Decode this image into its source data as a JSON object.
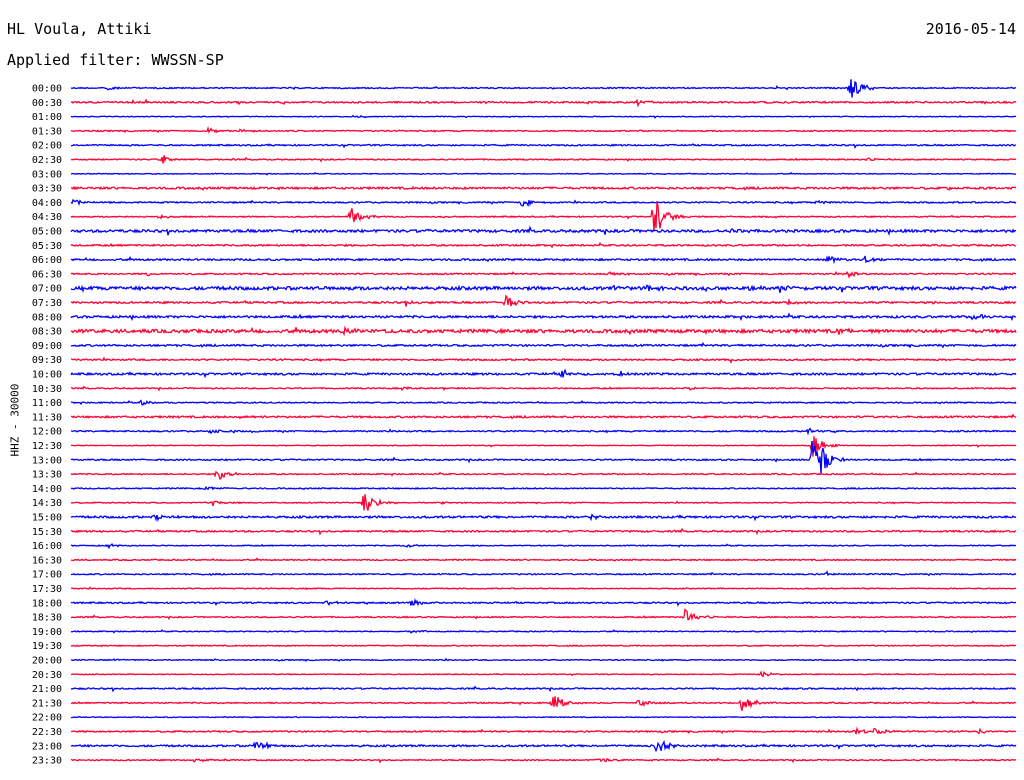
{
  "header": {
    "station": "HL Voula, Attiki",
    "date": "2016-05-14",
    "filter": "Applied filter: WWSSN-SP"
  },
  "chart_data": {
    "type": "line",
    "title": "HL Voula, Attiki",
    "ylabel": "HHZ - 30000",
    "colors": {
      "even": "#0000ff",
      "odd": "#ff0033"
    },
    "rows": [
      {
        "label": "00:00",
        "noise": 0.6,
        "events": [
          {
            "pos": 0.038,
            "amp": 2.5
          },
          {
            "pos": 0.825,
            "amp": 13
          }
        ]
      },
      {
        "label": "00:30",
        "noise": 0.8,
        "events": [
          {
            "pos": 0.6,
            "amp": 3
          }
        ]
      },
      {
        "label": "01:00",
        "noise": 0.4,
        "events": [
          {
            "pos": 0.3,
            "amp": 1.5
          }
        ]
      },
      {
        "label": "01:30",
        "noise": 0.6,
        "events": [
          {
            "pos": 0.145,
            "amp": 3
          },
          {
            "pos": 0.18,
            "amp": 2
          }
        ]
      },
      {
        "label": "02:00",
        "noise": 0.7,
        "events": []
      },
      {
        "label": "02:30",
        "noise": 0.6,
        "events": [
          {
            "pos": 0.097,
            "amp": 5
          },
          {
            "pos": 0.84,
            "amp": 1.5
          }
        ]
      },
      {
        "label": "03:00",
        "noise": 0.4,
        "events": []
      },
      {
        "label": "03:30",
        "noise": 1.0,
        "events": [
          {
            "pos": 0.93,
            "amp": 2
          }
        ]
      },
      {
        "label": "04:00",
        "noise": 0.7,
        "events": [
          {
            "pos": 0.002,
            "amp": 2.5
          },
          {
            "pos": 0.478,
            "amp": 5
          },
          {
            "pos": 0.79,
            "amp": 2
          }
        ]
      },
      {
        "label": "04:30",
        "noise": 0.6,
        "events": [
          {
            "pos": 0.093,
            "amp": 2
          },
          {
            "pos": 0.296,
            "amp": 9
          },
          {
            "pos": 0.617,
            "amp": 22
          }
        ]
      },
      {
        "label": "05:00",
        "noise": 1.3,
        "events": [
          {
            "pos": 0.7,
            "amp": 2
          }
        ]
      },
      {
        "label": "05:30",
        "noise": 0.8,
        "events": []
      },
      {
        "label": "06:00",
        "noise": 0.9,
        "events": [
          {
            "pos": 0.8,
            "amp": 4
          },
          {
            "pos": 0.84,
            "amp": 3
          }
        ]
      },
      {
        "label": "06:30",
        "noise": 0.7,
        "events": [
          {
            "pos": 0.08,
            "amp": 2
          },
          {
            "pos": 0.57,
            "amp": 2.5
          },
          {
            "pos": 0.82,
            "amp": 4
          }
        ]
      },
      {
        "label": "07:00",
        "noise": 1.6,
        "events": [
          {
            "pos": 0.57,
            "amp": 3
          },
          {
            "pos": 0.61,
            "amp": 3
          },
          {
            "pos": 0.72,
            "amp": 3
          },
          {
            "pos": 0.75,
            "amp": 3
          }
        ]
      },
      {
        "label": "07:30",
        "noise": 0.9,
        "events": [
          {
            "pos": 0.355,
            "amp": 2
          },
          {
            "pos": 0.46,
            "amp": 9
          },
          {
            "pos": 0.76,
            "amp": 2
          }
        ]
      },
      {
        "label": "08:00",
        "noise": 1.1,
        "events": [
          {
            "pos": 0.955,
            "amp": 4
          }
        ]
      },
      {
        "label": "08:30",
        "noise": 1.6,
        "events": [
          {
            "pos": 0.288,
            "amp": 3
          },
          {
            "pos": 0.81,
            "amp": 3
          }
        ]
      },
      {
        "label": "09:00",
        "noise": 0.9,
        "events": []
      },
      {
        "label": "09:30",
        "noise": 0.8,
        "events": [
          {
            "pos": 0.7,
            "amp": 2
          }
        ]
      },
      {
        "label": "10:00",
        "noise": 1.0,
        "events": [
          {
            "pos": 0.52,
            "amp": 4
          },
          {
            "pos": 0.58,
            "amp": 3
          }
        ]
      },
      {
        "label": "10:30",
        "noise": 0.6,
        "events": [
          {
            "pos": 0.35,
            "amp": 2
          },
          {
            "pos": 0.65,
            "amp": 2
          }
        ]
      },
      {
        "label": "11:00",
        "noise": 0.6,
        "events": [
          {
            "pos": 0.075,
            "amp": 3
          }
        ]
      },
      {
        "label": "11:30",
        "noise": 0.9,
        "events": [
          {
            "pos": 0.175,
            "amp": 2
          }
        ]
      },
      {
        "label": "12:00",
        "noise": 0.7,
        "events": [
          {
            "pos": 0.148,
            "amp": 2.5
          },
          {
            "pos": 0.78,
            "amp": 2.5
          }
        ]
      },
      {
        "label": "12:30",
        "noise": 0.4,
        "events": [
          {
            "pos": 0.785,
            "amp": 12
          }
        ]
      },
      {
        "label": "13:00",
        "noise": 0.7,
        "events": [
          {
            "pos": 0.785,
            "amp": 40
          }
        ]
      },
      {
        "label": "13:30",
        "noise": 0.6,
        "events": [
          {
            "pos": 0.155,
            "amp": 7
          }
        ]
      },
      {
        "label": "14:00",
        "noise": 0.6,
        "events": [
          {
            "pos": 0.14,
            "amp": 2
          }
        ]
      },
      {
        "label": "14:30",
        "noise": 0.5,
        "events": [
          {
            "pos": 0.15,
            "amp": 3
          },
          {
            "pos": 0.31,
            "amp": 14
          },
          {
            "pos": 0.39,
            "amp": 2
          }
        ]
      },
      {
        "label": "15:00",
        "noise": 1.0,
        "events": [
          {
            "pos": 0.09,
            "amp": 3
          },
          {
            "pos": 0.55,
            "amp": 2
          }
        ]
      },
      {
        "label": "15:30",
        "noise": 0.8,
        "events": []
      },
      {
        "label": "16:00",
        "noise": 0.5,
        "events": [
          {
            "pos": 0.04,
            "amp": 2.5
          },
          {
            "pos": 0.355,
            "amp": 2
          }
        ]
      },
      {
        "label": "16:30",
        "noise": 0.6,
        "events": []
      },
      {
        "label": "17:00",
        "noise": 0.6,
        "events": [
          {
            "pos": 0.8,
            "amp": 2
          }
        ]
      },
      {
        "label": "17:30",
        "noise": 0.5,
        "events": []
      },
      {
        "label": "18:00",
        "noise": 0.7,
        "events": [
          {
            "pos": 0.27,
            "amp": 3
          },
          {
            "pos": 0.36,
            "amp": 4
          }
        ]
      },
      {
        "label": "18:30",
        "noise": 0.6,
        "events": [
          {
            "pos": 0.65,
            "amp": 9
          }
        ]
      },
      {
        "label": "19:00",
        "noise": 0.5,
        "events": [
          {
            "pos": 0.36,
            "amp": 2
          }
        ]
      },
      {
        "label": "19:30",
        "noise": 0.5,
        "events": []
      },
      {
        "label": "20:00",
        "noise": 0.5,
        "events": [
          {
            "pos": 0.04,
            "amp": 1.5
          }
        ]
      },
      {
        "label": "20:30",
        "noise": 0.4,
        "events": [
          {
            "pos": 0.73,
            "amp": 3
          }
        ]
      },
      {
        "label": "21:00",
        "noise": 0.7,
        "events": []
      },
      {
        "label": "21:30",
        "noise": 0.6,
        "events": [
          {
            "pos": 0.51,
            "amp": 10
          },
          {
            "pos": 0.6,
            "amp": 4
          },
          {
            "pos": 0.71,
            "amp": 11
          }
        ]
      },
      {
        "label": "22:00",
        "noise": 0.4,
        "events": []
      },
      {
        "label": "22:30",
        "noise": 0.7,
        "events": [
          {
            "pos": 0.83,
            "amp": 3
          },
          {
            "pos": 0.85,
            "amp": 4
          },
          {
            "pos": 0.96,
            "amp": 2
          }
        ]
      },
      {
        "label": "23:00",
        "noise": 0.9,
        "events": [
          {
            "pos": 0.195,
            "amp": 6
          },
          {
            "pos": 0.62,
            "amp": 8
          }
        ]
      },
      {
        "label": "23:30",
        "noise": 0.6,
        "events": [
          {
            "pos": 0.13,
            "amp": 2
          },
          {
            "pos": 0.558,
            "amp": 3
          }
        ]
      }
    ]
  }
}
